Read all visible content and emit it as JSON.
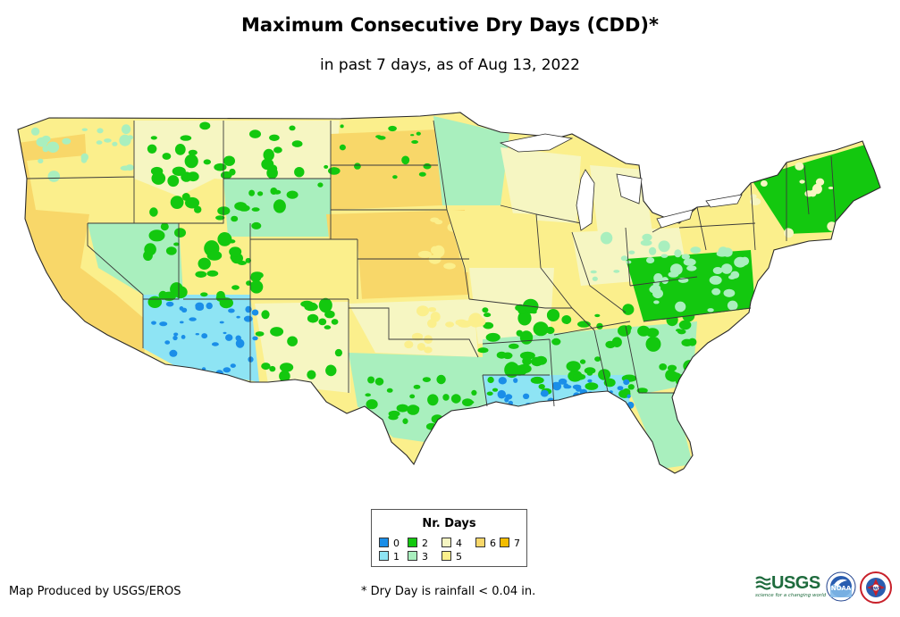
{
  "header": {
    "title": "Maximum Consecutive Dry Days (CDD)*",
    "subtitle": "in past 7 days, as of Aug 13, 2022"
  },
  "colors": {
    "0": "#1a8ee8",
    "1": "#8ee4f4",
    "2": "#13c80f",
    "3": "#a9efbe",
    "4": "#f6f6c2",
    "5": "#fbef8c",
    "6": "#f8d769",
    "7": "#f4bd00",
    "state_border": "#3a3a3a"
  },
  "legend": {
    "title": "Nr. Days",
    "items": [
      {
        "label": "0",
        "color": "#1a8ee8"
      },
      {
        "label": "1",
        "color": "#8ee4f4"
      },
      {
        "label": "2",
        "color": "#13c80f"
      },
      {
        "label": "3",
        "color": "#a9efbe"
      },
      {
        "label": "4",
        "color": "#f6f6c2"
      },
      {
        "label": "5",
        "color": "#fbef8c"
      },
      {
        "label": "6",
        "color": "#f8d769"
      },
      {
        "label": "7",
        "color": "#f4bd00"
      }
    ]
  },
  "footer": {
    "producer": "Map Produced by USGS/EROS",
    "footnote": "* Dry Day is rainfall < 0.04 in."
  },
  "logos": {
    "usgs_text": "USGS",
    "usgs_tagline": "science for a changing world",
    "noaa_text": "NOAA",
    "nws_text": "NWS"
  }
}
